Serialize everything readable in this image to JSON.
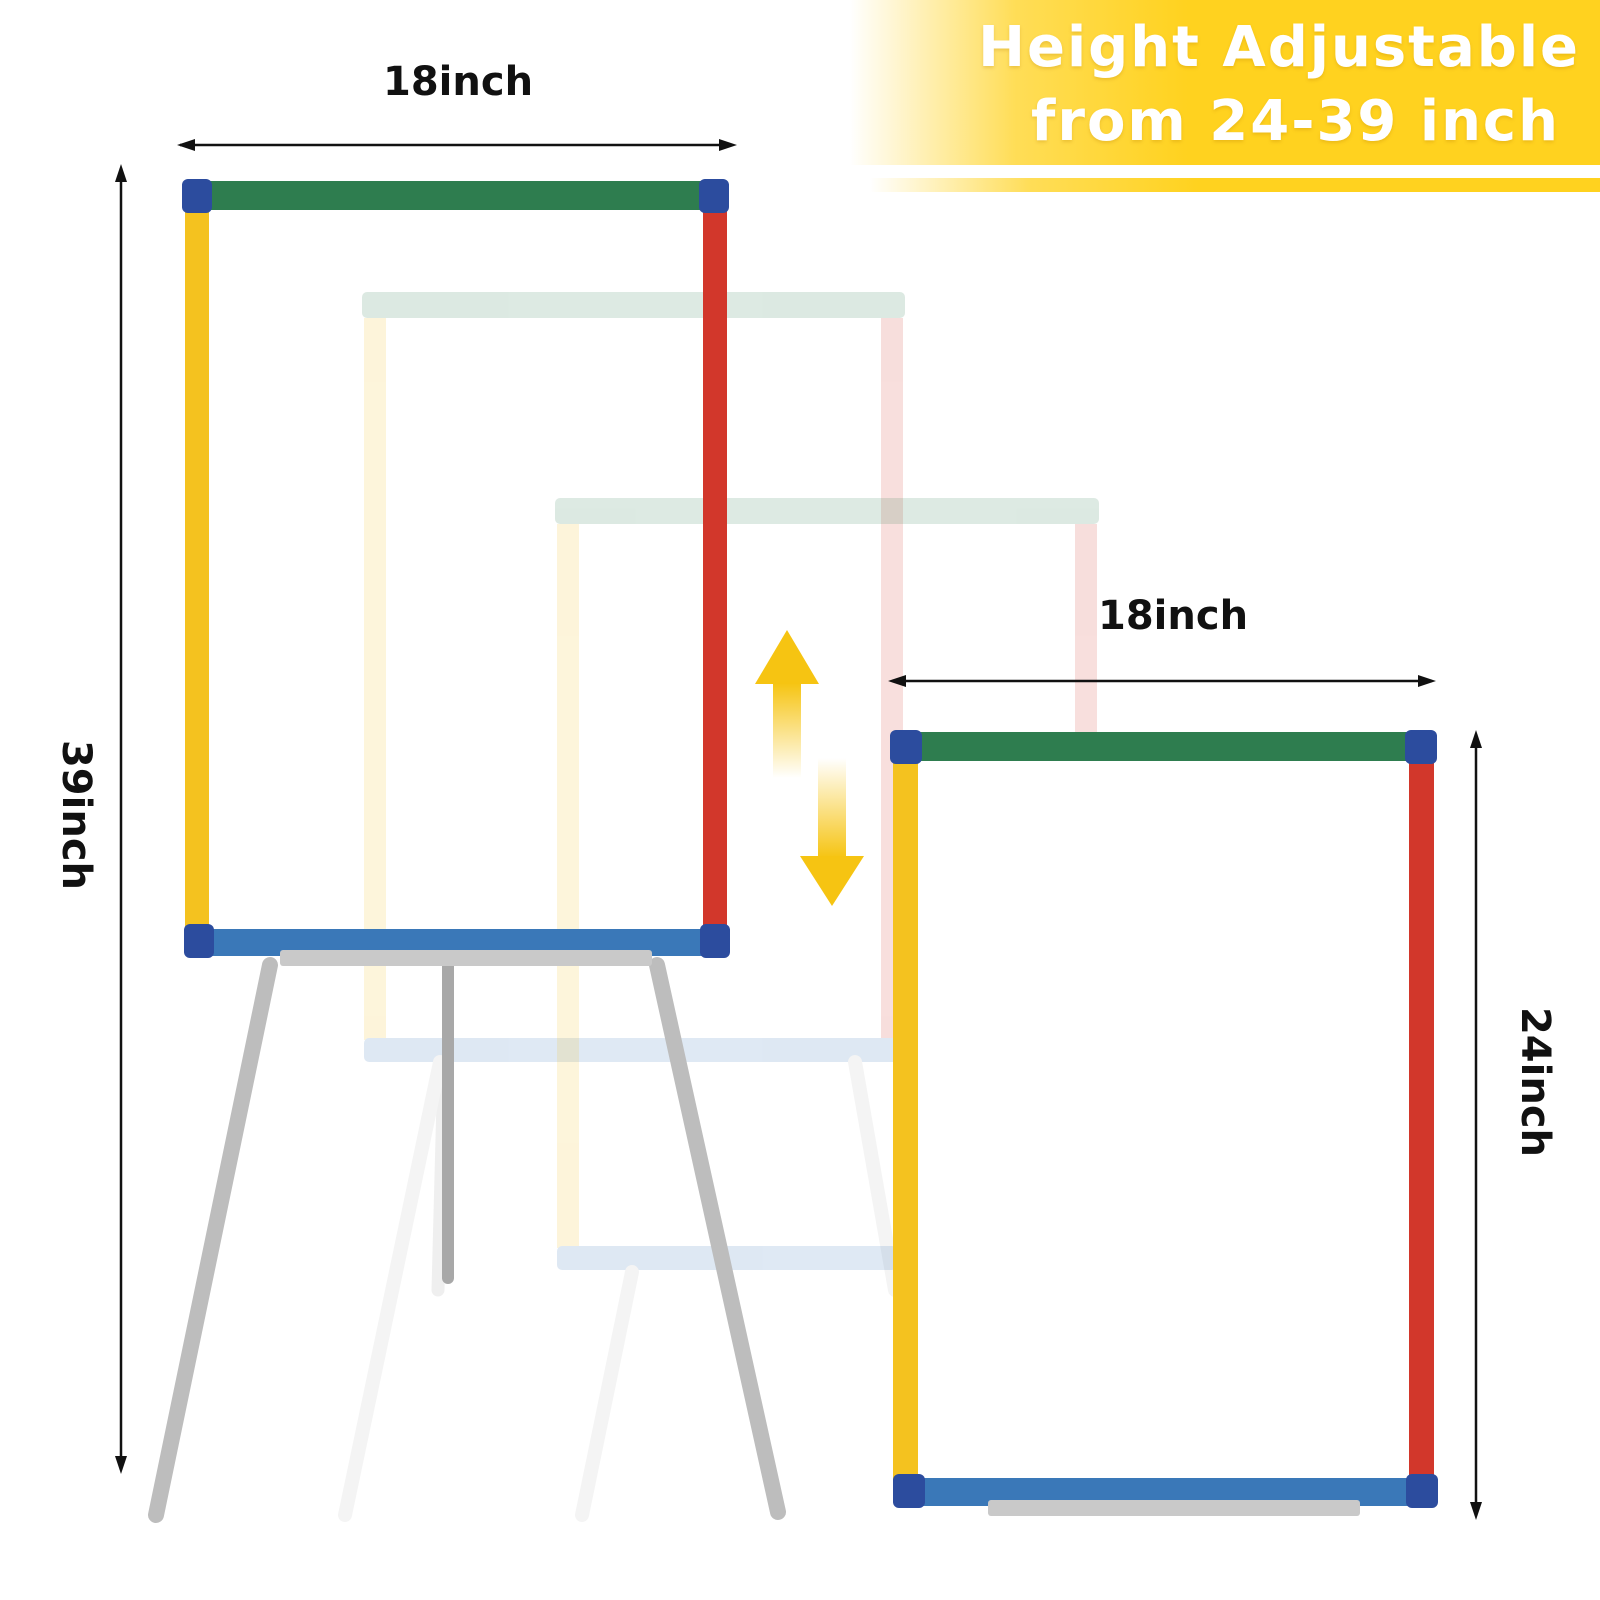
{
  "banner": {
    "line1": "Height Adjustable",
    "line2": "from 24-39 inch",
    "color": "#FFD21F"
  },
  "tall_easel": {
    "width_label": "18inch",
    "height_label": "39inch"
  },
  "short_easel": {
    "width_label": "18inch",
    "height_label": "24inch"
  },
  "frame_colors": {
    "top": "#2E7D4F",
    "left": "#F4C21F",
    "right": "#D2372B",
    "bottom": "#3A78B8",
    "corner": "#2C4C9E",
    "leg": "#BDBDBD"
  },
  "adjust_arrow_color": "#F6C412",
  "icons": [
    "up-arrow-icon",
    "down-arrow-icon"
  ]
}
